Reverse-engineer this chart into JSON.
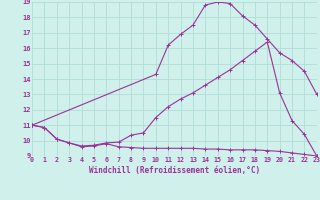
{
  "xlabel": "Windchill (Refroidissement éolien,°C)",
  "xlim": [
    0,
    23
  ],
  "ylim": [
    9,
    19
  ],
  "yticks": [
    9,
    10,
    11,
    12,
    13,
    14,
    15,
    16,
    17,
    18,
    19
  ],
  "xticks": [
    0,
    1,
    2,
    3,
    4,
    5,
    6,
    7,
    8,
    9,
    10,
    11,
    12,
    13,
    14,
    15,
    16,
    17,
    18,
    19,
    20,
    21,
    22,
    23
  ],
  "background_color": "#cff0eb",
  "grid_color": "#b0ddd7",
  "line_color": "#993399",
  "lines": [
    {
      "x": [
        0,
        1,
        2,
        3,
        4,
        5,
        6,
        7,
        8,
        9,
        10,
        11,
        12,
        13,
        14,
        15,
        16,
        17,
        18,
        19,
        20,
        21,
        22,
        23
      ],
      "y": [
        11.0,
        10.85,
        10.1,
        9.85,
        9.6,
        9.65,
        9.8,
        9.6,
        9.55,
        9.5,
        9.5,
        9.5,
        9.5,
        9.5,
        9.45,
        9.45,
        9.4,
        9.4,
        9.4,
        9.35,
        9.3,
        9.2,
        9.1,
        9.0
      ]
    },
    {
      "x": [
        0,
        1,
        2,
        3,
        4,
        5,
        6,
        7,
        8,
        9,
        10,
        11,
        12,
        13,
        14,
        15,
        16,
        17,
        18,
        19,
        20,
        21,
        22,
        23
      ],
      "y": [
        11.0,
        10.85,
        10.1,
        9.85,
        9.65,
        9.7,
        9.85,
        9.9,
        10.35,
        10.5,
        11.5,
        12.2,
        12.7,
        13.1,
        13.6,
        14.1,
        14.6,
        15.2,
        15.8,
        16.4,
        13.1,
        11.3,
        10.4,
        9.0
      ]
    },
    {
      "x": [
        0,
        10,
        11,
        12,
        13,
        14,
        15,
        16,
        17,
        18,
        19,
        20,
        21,
        22,
        23
      ],
      "y": [
        11.0,
        14.3,
        16.2,
        16.9,
        17.5,
        18.8,
        19.0,
        18.9,
        18.1,
        17.5,
        16.6,
        15.7,
        15.2,
        14.5,
        13.0
      ]
    }
  ],
  "markersize": 2.5
}
